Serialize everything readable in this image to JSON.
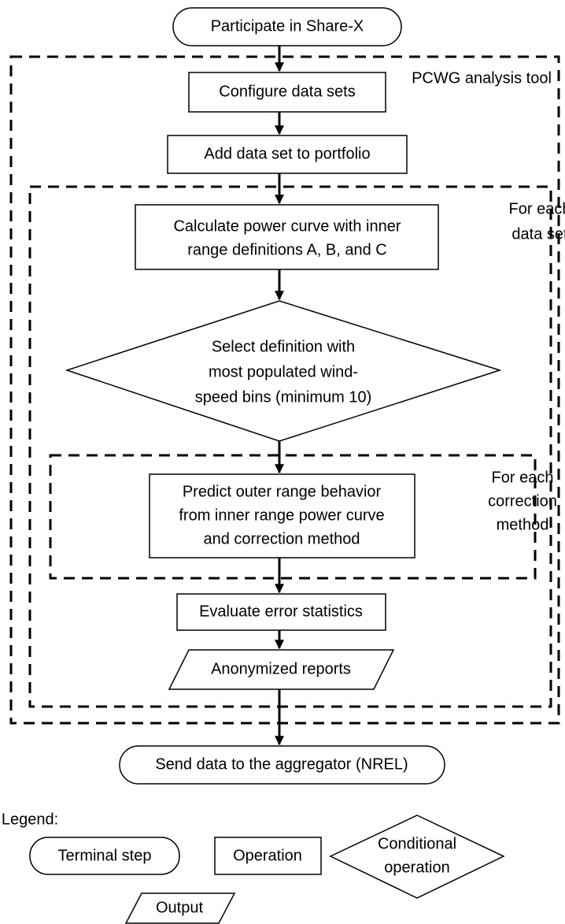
{
  "nodes": [
    {
      "lines": [
        "Participate in Share-X"
      ]
    },
    {
      "lines": [
        "Configure data sets"
      ]
    },
    {
      "lines": [
        "Add data set to portfolio"
      ]
    },
    {
      "lines": [
        "Calculate power curve with inner",
        "range definitions A, B, and C"
      ]
    },
    {
      "lines": [
        "Select definition with",
        "most populated wind-",
        "speed bins (minimum 10)"
      ]
    },
    {
      "lines": [
        "Predict outer range behavior",
        "from inner range power curve",
        "and correction method"
      ]
    },
    {
      "lines": [
        "Evaluate error statistics"
      ]
    },
    {
      "lines": [
        "Anonymized reports"
      ]
    },
    {
      "lines": [
        "Send data to the aggregator (NREL)"
      ]
    }
  ],
  "groups": [
    {
      "lines": [
        "PCWG analysis tool"
      ]
    },
    {
      "lines": [
        "For each",
        "data set"
      ]
    },
    {
      "lines": [
        "For each",
        "correction",
        "method"
      ]
    }
  ],
  "legend": {
    "title": "Legend:",
    "items": [
      {
        "lines": [
          "Terminal step"
        ]
      },
      {
        "lines": [
          "Operation"
        ]
      },
      {
        "lines": [
          "Conditional",
          "operation"
        ]
      },
      {
        "lines": [
          "Output"
        ]
      }
    ]
  }
}
